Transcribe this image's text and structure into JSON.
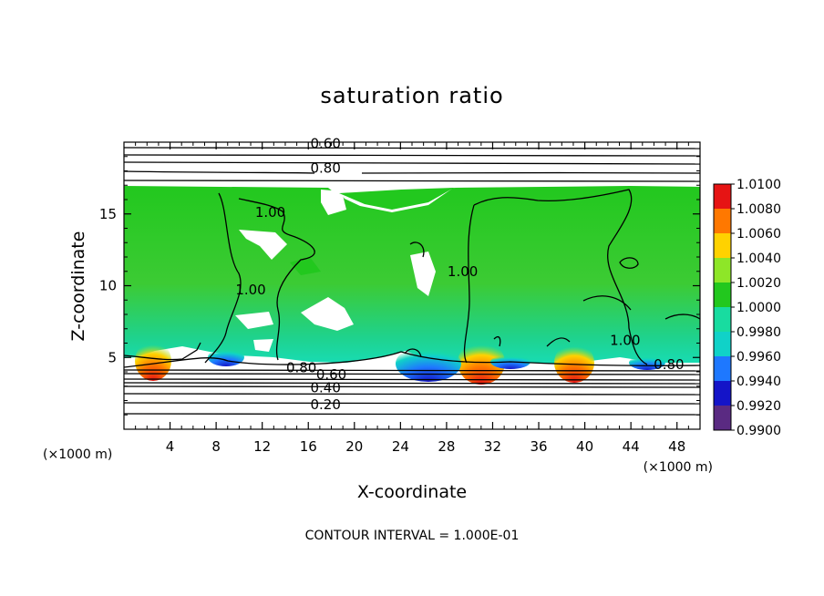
{
  "chart_data": {
    "type": "heatmap",
    "title": "saturation ratio",
    "xlabel": "X-coordinate",
    "ylabel": "Z-coordinate",
    "x_unit_label": "(×1000 m)",
    "y_unit_label": "(×1000 m)",
    "xlim": [
      0,
      50
    ],
    "ylim": [
      0,
      20
    ],
    "x_ticks": [
      4,
      8,
      12,
      16,
      20,
      24,
      28,
      32,
      36,
      40,
      44,
      48
    ],
    "y_ticks": [
      5,
      10,
      15
    ],
    "colorbar": {
      "levels": [
        "0.9900",
        "0.9920",
        "0.9940",
        "0.9960",
        "0.9980",
        "1.0000",
        "1.0020",
        "1.0040",
        "1.0060",
        "1.0080",
        "1.0100"
      ],
      "colors": [
        "#5a2a82",
        "#1414c8",
        "#1e78ff",
        "#10d2c8",
        "#18dca0",
        "#22c81e",
        "#8ee628",
        "#ffd200",
        "#ff7800",
        "#e61414",
        "#f08a8a"
      ]
    },
    "contour_labels": [
      {
        "text": "0.60",
        "x": 17.5,
        "y": 19.9
      },
      {
        "text": "0.80",
        "x": 17.5,
        "y": 18.2
      },
      {
        "text": "1.00",
        "x": 12.7,
        "y": 15.1
      },
      {
        "text": "1.00",
        "x": 11.0,
        "y": 9.7
      },
      {
        "text": "1.00",
        "x": 29.4,
        "y": 11.0
      },
      {
        "text": "1.00",
        "x": 43.5,
        "y": 6.2
      },
      {
        "text": "0.80",
        "x": 15.4,
        "y": 4.3
      },
      {
        "text": "0.60",
        "x": 18.0,
        "y": 3.8
      },
      {
        "text": "0.40",
        "x": 17.5,
        "y": 2.9
      },
      {
        "text": "0.20",
        "x": 17.5,
        "y": 1.7
      },
      {
        "text": "0.80",
        "x": 47.3,
        "y": 4.5
      }
    ],
    "contour_interval_text": "CONTOUR INTERVAL = 1.000E-01"
  }
}
